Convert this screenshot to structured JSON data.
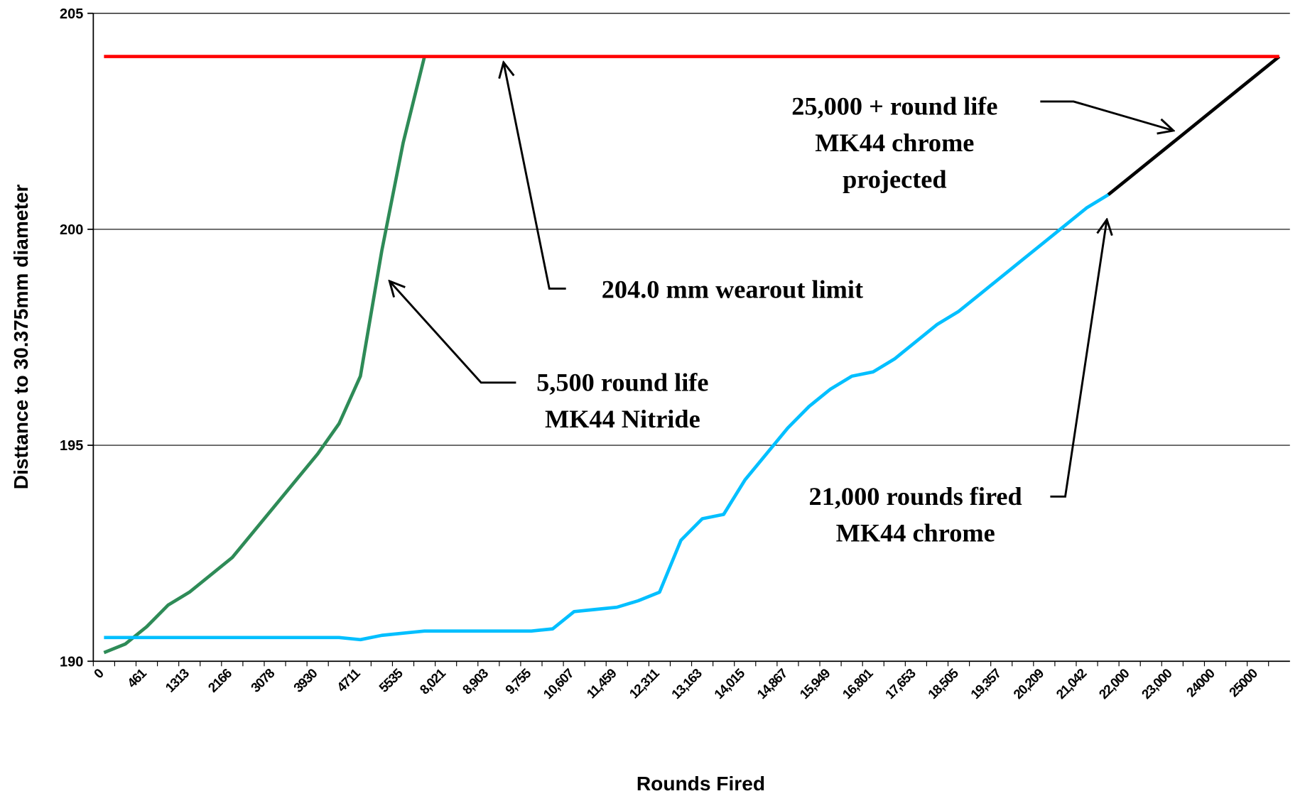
{
  "chart_data": {
    "type": "line",
    "xlabel": "Rounds Fired",
    "ylabel": "Disttance to 30.375mm diameter",
    "categories": [
      "0",
      null,
      "461",
      null,
      "1313",
      null,
      "2166",
      null,
      "3078",
      null,
      "3930",
      null,
      "4711",
      null,
      "5535",
      null,
      "8,021",
      null,
      "8,903",
      null,
      "9,755",
      null,
      "10,607",
      null,
      "11,459",
      null,
      "12,311",
      null,
      "13,163",
      null,
      "14,015",
      null,
      "14,867",
      null,
      "15,949",
      null,
      "16,801",
      null,
      "17,653",
      null,
      "18,505",
      null,
      "19,357",
      null,
      "20,209",
      null,
      "21,042",
      null,
      "22,000",
      null,
      "23,000",
      null,
      "24000",
      null,
      "25000",
      null
    ],
    "series": [
      {
        "name": "MK44 Nitride",
        "color": "#2e8b57",
        "values": [
          190.2,
          190.4,
          190.8,
          191.3,
          191.6,
          192.0,
          192.4,
          193.0,
          193.6,
          194.2,
          194.8,
          195.5,
          196.6,
          199.5,
          202.0,
          204.0,
          null,
          null,
          null,
          null,
          null,
          null,
          null,
          null,
          null,
          null,
          null,
          null,
          null,
          null,
          null,
          null,
          null,
          null,
          null,
          null,
          null,
          null,
          null,
          null,
          null,
          null,
          null,
          null,
          null,
          null,
          null,
          null,
          null,
          null,
          null,
          null,
          null,
          null,
          null,
          null
        ]
      },
      {
        "name": "MK44 chrome",
        "color": "#00bfff",
        "values": [
          190.55,
          190.55,
          190.55,
          190.55,
          190.55,
          190.55,
          190.55,
          190.55,
          190.55,
          190.55,
          190.55,
          190.55,
          190.5,
          190.6,
          190.65,
          190.7,
          190.7,
          190.7,
          190.7,
          190.7,
          190.7,
          190.75,
          191.15,
          191.2,
          191.25,
          191.4,
          191.6,
          192.8,
          193.3,
          193.4,
          194.2,
          194.8,
          195.4,
          195.9,
          196.3,
          196.6,
          196.7,
          197.0,
          197.4,
          197.8,
          198.1,
          198.5,
          198.9,
          199.3,
          199.7,
          200.1,
          200.5,
          200.8,
          null,
          null,
          null,
          null,
          null,
          null,
          null,
          null
        ]
      },
      {
        "name": "MK44 chrome projected",
        "color": "#000000",
        "values": [
          null,
          null,
          null,
          null,
          null,
          null,
          null,
          null,
          null,
          null,
          null,
          null,
          null,
          null,
          null,
          null,
          null,
          null,
          null,
          null,
          null,
          null,
          null,
          null,
          null,
          null,
          null,
          null,
          null,
          null,
          null,
          null,
          null,
          null,
          null,
          null,
          null,
          null,
          null,
          null,
          null,
          null,
          null,
          null,
          null,
          null,
          null,
          200.8,
          201.2,
          201.6,
          202.0,
          202.4,
          202.8,
          203.2,
          203.6,
          204.0
        ]
      },
      {
        "name": "204.0 mm wearout limit",
        "color": "#ff0000",
        "values": [
          204,
          204,
          204,
          204,
          204,
          204,
          204,
          204,
          204,
          204,
          204,
          204,
          204,
          204,
          204,
          204,
          204,
          204,
          204,
          204,
          204,
          204,
          204,
          204,
          204,
          204,
          204,
          204,
          204,
          204,
          204,
          204,
          204,
          204,
          204,
          204,
          204,
          204,
          204,
          204,
          204,
          204,
          204,
          204,
          204,
          204,
          204,
          204,
          204,
          204,
          204,
          204,
          204,
          204,
          204,
          204
        ]
      }
    ],
    "ylim": [
      190,
      205
    ],
    "yticks": [
      190,
      195,
      200,
      205
    ],
    "grid": true,
    "annotations": [
      {
        "lines": [
          "204.0 mm wearout limit"
        ]
      },
      {
        "lines": [
          "5,500 round life",
          "MK44 Nitride"
        ]
      },
      {
        "lines": [
          "21,000 rounds fired",
          "MK44 chrome"
        ]
      },
      {
        "lines": [
          "25,000 + round life",
          "MK44 chrome",
          "projected"
        ]
      }
    ]
  }
}
